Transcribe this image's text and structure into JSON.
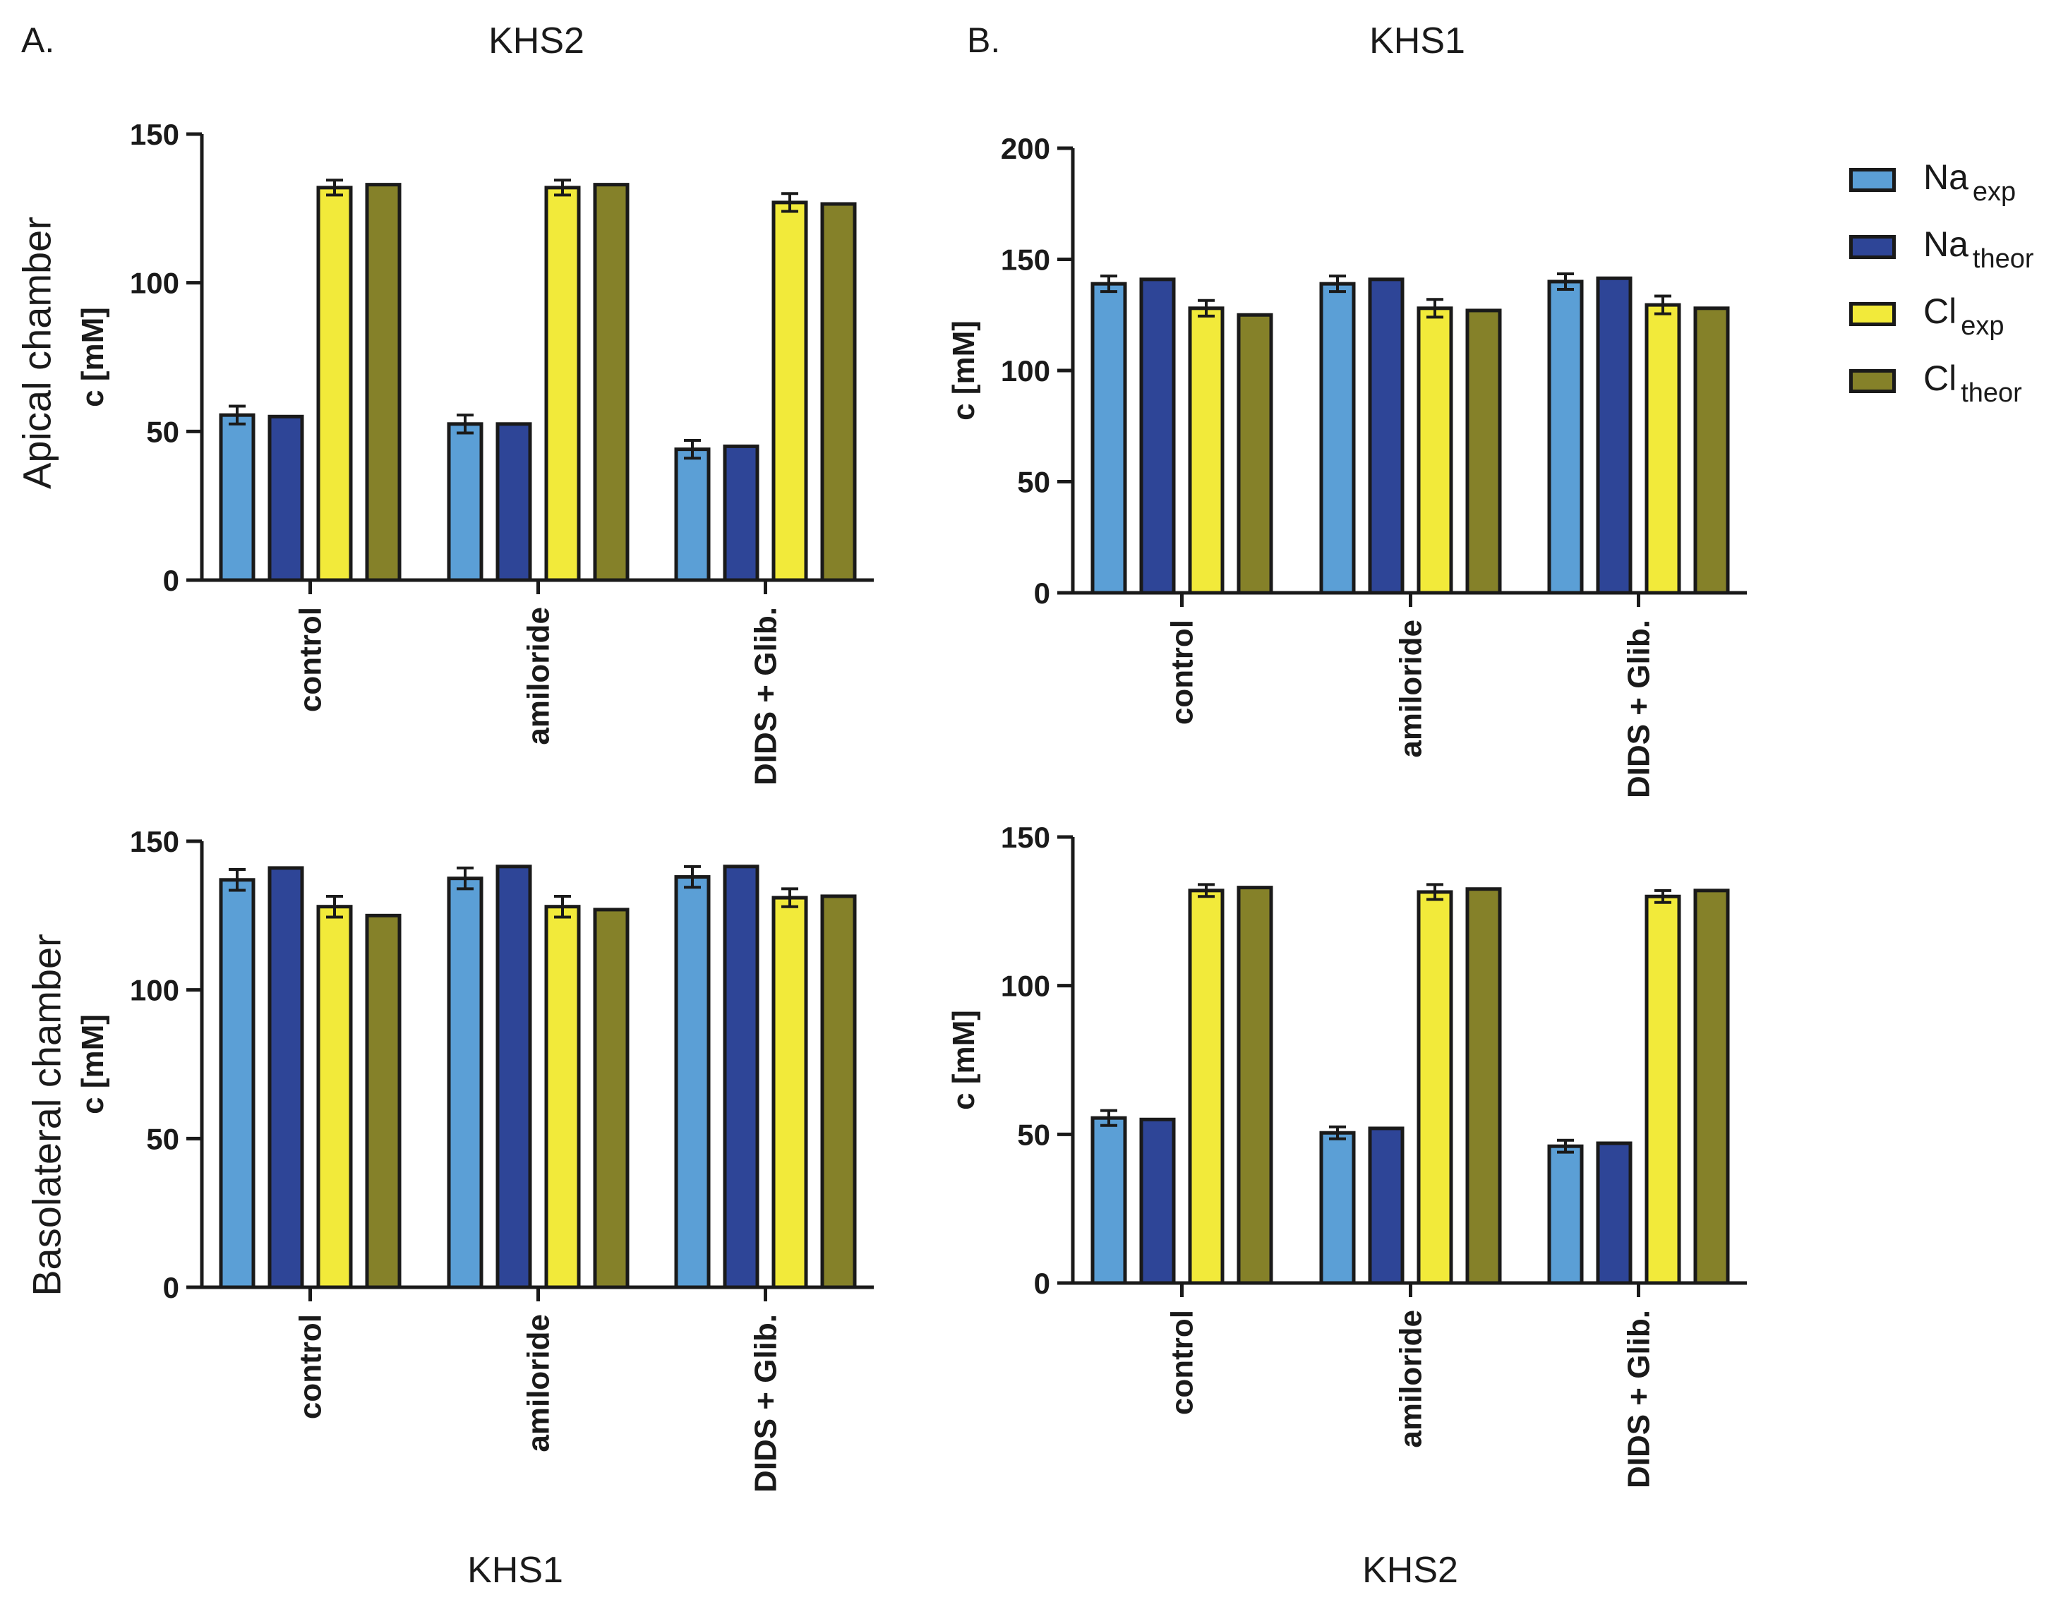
{
  "panels": {
    "a": {
      "letter": "A.",
      "title": "KHS2",
      "bottom_label": "KHS1"
    },
    "b": {
      "letter": "B.",
      "title": "KHS1",
      "bottom_label": "KHS2"
    }
  },
  "rows": {
    "apical": "Apical chamber",
    "basolateral": "Basolateral chamber"
  },
  "legend": {
    "items": [
      {
        "main": "Na",
        "sub": "exp",
        "color": "#5b9fd6"
      },
      {
        "main": "Na",
        "sub": "theor",
        "color": "#2e4597"
      },
      {
        "main": "Cl",
        "sub": "exp",
        "color": "#f2ea3a"
      },
      {
        "main": "Cl",
        "sub": "theor",
        "color": "#858129"
      }
    ]
  },
  "chart_data": [
    {
      "id": "apical-khs2",
      "type": "bar",
      "title": "KHS2",
      "ylabel": "c [mM]",
      "ylim": [
        0,
        150
      ],
      "yticks": [
        0,
        50,
        100,
        150
      ],
      "categories": [
        "control",
        "amiloride",
        "DIDS + Glib."
      ],
      "series": [
        {
          "name": "Na exp",
          "color": "#5b9fd6",
          "values": [
            55.5,
            52.5,
            44
          ],
          "errors": [
            3,
            3,
            3
          ]
        },
        {
          "name": "Na theor",
          "color": "#2e4597",
          "values": [
            55,
            52.5,
            45
          ],
          "errors": null
        },
        {
          "name": "Cl exp",
          "color": "#f2ea3a",
          "values": [
            132,
            132,
            127
          ],
          "errors": [
            2.5,
            2.5,
            3
          ]
        },
        {
          "name": "Cl theor",
          "color": "#858129",
          "values": [
            133,
            133,
            126.5
          ],
          "errors": null
        }
      ]
    },
    {
      "id": "apical-khs1",
      "type": "bar",
      "title": "KHS1",
      "ylabel": "c [mM]",
      "ylim": [
        0,
        200
      ],
      "yticks": [
        0,
        50,
        100,
        150,
        200
      ],
      "categories": [
        "control",
        "amiloride",
        "DIDS + Glib."
      ],
      "series": [
        {
          "name": "Na exp",
          "color": "#5b9fd6",
          "values": [
            139,
            139,
            140
          ],
          "errors": [
            3.5,
            3.5,
            3.5
          ]
        },
        {
          "name": "Na theor",
          "color": "#2e4597",
          "values": [
            141,
            141,
            141.5
          ],
          "errors": null
        },
        {
          "name": "Cl exp",
          "color": "#f2ea3a",
          "values": [
            128,
            128,
            129.5
          ],
          "errors": [
            3.5,
            4,
            4
          ]
        },
        {
          "name": "Cl theor",
          "color": "#858129",
          "values": [
            125,
            127,
            128
          ],
          "errors": null
        }
      ]
    },
    {
      "id": "basolateral-khs1",
      "type": "bar",
      "title": "KHS1",
      "ylabel": "c [mM]",
      "ylim": [
        0,
        150
      ],
      "yticks": [
        0,
        50,
        100,
        150
      ],
      "categories": [
        "control",
        "amiloride",
        "DIDS + Glib."
      ],
      "series": [
        {
          "name": "Na exp",
          "color": "#5b9fd6",
          "values": [
            137,
            137.5,
            138
          ],
          "errors": [
            3.5,
            3.5,
            3.5
          ]
        },
        {
          "name": "Na theor",
          "color": "#2e4597",
          "values": [
            141,
            141.5,
            141.5
          ],
          "errors": null
        },
        {
          "name": "Cl exp",
          "color": "#f2ea3a",
          "values": [
            128,
            128,
            131
          ],
          "errors": [
            3.5,
            3.5,
            3
          ]
        },
        {
          "name": "Cl theor",
          "color": "#858129",
          "values": [
            125,
            127,
            131.5
          ],
          "errors": null
        }
      ]
    },
    {
      "id": "basolateral-khs2",
      "type": "bar",
      "title": "KHS2",
      "ylabel": "c [mM]",
      "ylim": [
        0,
        150
      ],
      "yticks": [
        0,
        50,
        100,
        150
      ],
      "categories": [
        "control",
        "amiloride",
        "DIDS + Glib."
      ],
      "series": [
        {
          "name": "Na exp",
          "color": "#5b9fd6",
          "values": [
            55.5,
            50.5,
            46
          ],
          "errors": [
            2.5,
            2,
            2
          ]
        },
        {
          "name": "Na theor",
          "color": "#2e4597",
          "values": [
            55,
            52,
            47
          ],
          "errors": null
        },
        {
          "name": "Cl exp",
          "color": "#f2ea3a",
          "values": [
            132,
            131.5,
            130
          ],
          "errors": [
            2,
            2.5,
            2
          ]
        },
        {
          "name": "Cl theor",
          "color": "#858129",
          "values": [
            133,
            132.5,
            132
          ],
          "errors": null
        }
      ]
    }
  ]
}
